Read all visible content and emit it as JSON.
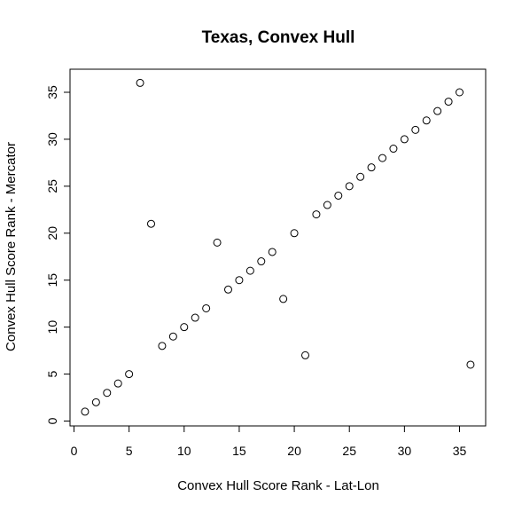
{
  "chart_data": {
    "type": "scatter",
    "title": "Texas, Convex Hull",
    "xlabel": "Convex Hull Score Rank - Lat-Lon",
    "ylabel": "Convex Hull Score Rank - Mercator",
    "xlim": [
      0,
      36
    ],
    "ylim": [
      0,
      36
    ],
    "x_ticks": [
      "0",
      "5",
      "10",
      "15",
      "20",
      "25",
      "30",
      "35"
    ],
    "y_ticks": [
      "0",
      "5",
      "10",
      "15",
      "20",
      "25",
      "30",
      "35"
    ],
    "grid": false,
    "legend": "none",
    "points": [
      {
        "x": 1,
        "y": 1
      },
      {
        "x": 2,
        "y": 2
      },
      {
        "x": 3,
        "y": 3
      },
      {
        "x": 4,
        "y": 4
      },
      {
        "x": 5,
        "y": 5
      },
      {
        "x": 6,
        "y": 36
      },
      {
        "x": 7,
        "y": 21
      },
      {
        "x": 8,
        "y": 8
      },
      {
        "x": 9,
        "y": 9
      },
      {
        "x": 10,
        "y": 10
      },
      {
        "x": 11,
        "y": 11
      },
      {
        "x": 12,
        "y": 12
      },
      {
        "x": 13,
        "y": 19
      },
      {
        "x": 14,
        "y": 14
      },
      {
        "x": 15,
        "y": 15
      },
      {
        "x": 16,
        "y": 16
      },
      {
        "x": 17,
        "y": 17
      },
      {
        "x": 18,
        "y": 18
      },
      {
        "x": 19,
        "y": 13
      },
      {
        "x": 20,
        "y": 20
      },
      {
        "x": 21,
        "y": 7
      },
      {
        "x": 22,
        "y": 22
      },
      {
        "x": 23,
        "y": 23
      },
      {
        "x": 24,
        "y": 24
      },
      {
        "x": 25,
        "y": 25
      },
      {
        "x": 26,
        "y": 26
      },
      {
        "x": 27,
        "y": 27
      },
      {
        "x": 28,
        "y": 28
      },
      {
        "x": 29,
        "y": 29
      },
      {
        "x": 30,
        "y": 30
      },
      {
        "x": 31,
        "y": 31
      },
      {
        "x": 32,
        "y": 32
      },
      {
        "x": 33,
        "y": 33
      },
      {
        "x": 34,
        "y": 34
      },
      {
        "x": 35,
        "y": 35
      },
      {
        "x": 36,
        "y": 6
      }
    ]
  }
}
